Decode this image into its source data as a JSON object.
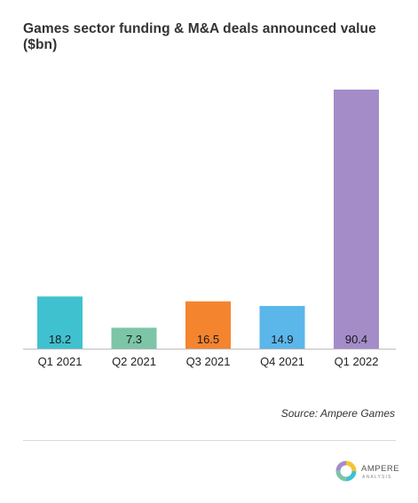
{
  "chart_data": {
    "type": "bar",
    "title": "Games sector funding & M&A deals announced value ($bn)",
    "categories": [
      "Q1 2021",
      "Q2 2021",
      "Q3 2021",
      "Q4 2021",
      "Q1 2022"
    ],
    "values": [
      18.2,
      7.3,
      16.5,
      14.9,
      90.4
    ],
    "colors": [
      "#3fc1cf",
      "#7cc5a6",
      "#f5842e",
      "#5bb6ea",
      "#a48cc9"
    ],
    "ylim": [
      0,
      90.4
    ],
    "grid": false,
    "legend": "none",
    "source": "Source: Ampere Games"
  },
  "logo": {
    "name": "AMPERE",
    "subtitle": "ANALYSIS",
    "colors": [
      "#f5c330",
      "#3fc1cf",
      "#7cc5a6",
      "#a48cc9"
    ]
  }
}
